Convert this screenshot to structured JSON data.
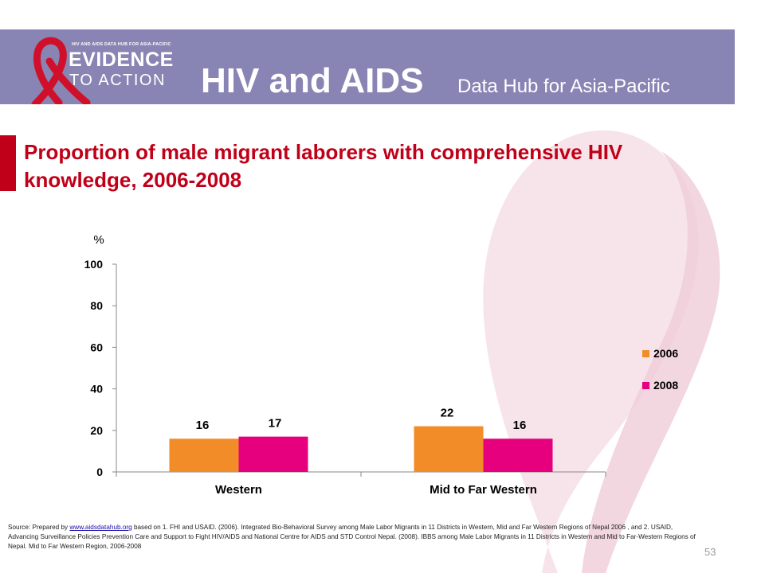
{
  "header": {
    "logo": {
      "top_text": "HIV AND AIDS DATA HUB FOR ASIA-PACIFIC",
      "line1": "EVIDENCE",
      "line2": "TO ACTION"
    },
    "title": "HIV and AIDS",
    "subtitle": "Data Hub for Asia-Pacific"
  },
  "colors": {
    "header_bg": "#8884b4",
    "title_red": "#c00018",
    "series_2006": "#f28c28",
    "series_2008": "#e6007e",
    "ribbon": "#f4dce4"
  },
  "slide": {
    "title": "Proportion of male migrant laborers with comprehensive HIV knowledge, 2006-2008"
  },
  "chart_data": {
    "type": "bar",
    "ylabel": "%",
    "ylim": [
      0,
      100
    ],
    "yticks": [
      "0",
      "20",
      "40",
      "60",
      "80",
      "100"
    ],
    "categories": [
      "Western",
      "Mid to Far Western"
    ],
    "series": [
      {
        "name": "2006",
        "values": [
          16,
          22
        ],
        "color": "#f28c28"
      },
      {
        "name": "2008",
        "values": [
          17,
          16
        ],
        "color": "#e6007e"
      }
    ],
    "legend_position": "right",
    "grid": false
  },
  "source": {
    "prefix": "Source: Prepared by ",
    "link": "www.aidsdatahub.org",
    "text": " based on 1. FHI and USAID. (2006). Integrated Bio-Behavioral Survey among Male Labor Migrants in 11 Districts in Western, Mid and Far Western Regions of Nepal 2006 , and  2. USAID, Advancing Surveillance Policies Prevention Care and Support to Fight HIV/AIDS and National Centre for AIDS and STD Control Nepal. (2008).  IBBS among Male Labor Migrants in 11 Districts in Western and Mid to Far-Western Regions of Nepal. Mid to Far Western Region,  2006-2008"
  },
  "page_number": "53"
}
